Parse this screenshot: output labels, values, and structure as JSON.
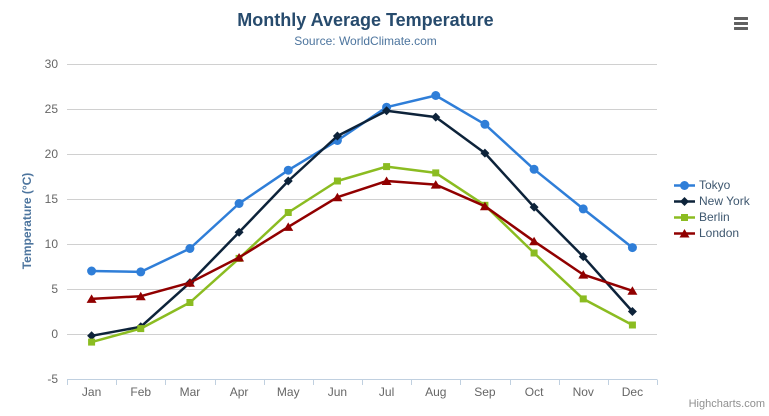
{
  "credit": {
    "label": "Highcharts.com"
  },
  "menu": {
    "icon": "hamburger-icon"
  },
  "colors": {
    "title": "#274b6d",
    "subtitle": "#4d759e",
    "axis_label": "#666666",
    "grid": "#d0d0d0",
    "axis_line": "#c0d0e0",
    "legend_text": "#3e576f",
    "credit": "#909090"
  },
  "chart_data": {
    "type": "line",
    "title": "Monthly Average Temperature",
    "subtitle": "Source: WorldClimate.com",
    "xlabel": "",
    "ylabel": "Temperature (°C)",
    "ylim": [
      -5,
      30
    ],
    "ytick_interval": 5,
    "grid": true,
    "legend_position": "right",
    "categories": [
      "Jan",
      "Feb",
      "Mar",
      "Apr",
      "May",
      "Jun",
      "Jul",
      "Aug",
      "Sep",
      "Oct",
      "Nov",
      "Dec"
    ],
    "series": [
      {
        "name": "Tokyo",
        "color": "#2f7ed8",
        "marker": "circle",
        "values": [
          7.0,
          6.9,
          9.5,
          14.5,
          18.2,
          21.5,
          25.2,
          26.5,
          23.3,
          18.3,
          13.9,
          9.6
        ]
      },
      {
        "name": "New York",
        "color": "#0d233a",
        "marker": "diamond",
        "values": [
          -0.2,
          0.8,
          5.7,
          11.3,
          17.0,
          22.0,
          24.8,
          24.1,
          20.1,
          14.1,
          8.6,
          2.5
        ]
      },
      {
        "name": "Berlin",
        "color": "#8bbc21",
        "marker": "square",
        "values": [
          -0.9,
          0.6,
          3.5,
          8.4,
          13.5,
          17.0,
          18.6,
          17.9,
          14.3,
          9.0,
          3.9,
          1.0
        ]
      },
      {
        "name": "London",
        "color": "#910000",
        "marker": "triangle",
        "values": [
          3.9,
          4.2,
          5.7,
          8.5,
          11.9,
          15.2,
          17.0,
          16.6,
          14.2,
          10.3,
          6.6,
          4.8
        ]
      }
    ]
  }
}
